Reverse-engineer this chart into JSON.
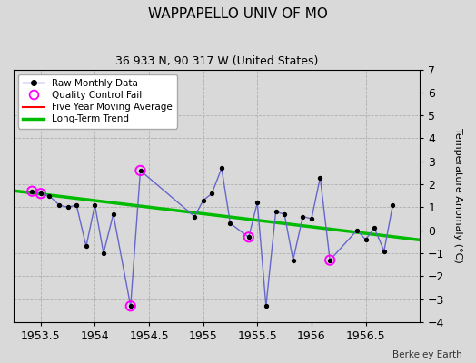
{
  "title": "WAPPAPELLO UNIV OF MO",
  "subtitle": "36.933 N, 90.317 W (United States)",
  "credit": "Berkeley Earth",
  "ylabel": "Temperature Anomaly (°C)",
  "xlim": [
    1953.25,
    1957.0
  ],
  "ylim": [
    -4,
    7
  ],
  "yticks": [
    -4,
    -3,
    -2,
    -1,
    0,
    1,
    2,
    3,
    4,
    5,
    6,
    7
  ],
  "xticks": [
    1953.5,
    1954.0,
    1954.5,
    1955.0,
    1955.5,
    1956.0,
    1956.5
  ],
  "xtick_labels": [
    "1953.5",
    "1954",
    "1954.5",
    "1955",
    "1955.5",
    "1956",
    "1956.5"
  ],
  "background_color": "#d9d9d9",
  "plot_bg_color": "#d9d9d9",
  "raw_x": [
    1953.42,
    1953.5,
    1953.58,
    1953.67,
    1953.75,
    1953.83,
    1953.92,
    1954.0,
    1954.08,
    1954.17,
    1954.33,
    1954.42,
    1954.92,
    1955.0,
    1955.08,
    1955.17,
    1955.25,
    1955.42,
    1955.5,
    1955.58,
    1955.67,
    1955.75,
    1955.83,
    1955.92,
    1956.0,
    1956.08,
    1956.17,
    1956.42,
    1956.5,
    1956.58,
    1956.67,
    1956.75
  ],
  "raw_y": [
    1.7,
    1.6,
    1.5,
    1.1,
    1.0,
    1.1,
    -0.7,
    1.1,
    -1.0,
    0.7,
    -3.3,
    2.6,
    0.6,
    1.3,
    1.6,
    2.7,
    0.3,
    -0.3,
    1.2,
    -3.3,
    0.8,
    0.7,
    -1.3,
    0.6,
    0.5,
    2.3,
    -1.3,
    0.0,
    -0.4,
    0.1,
    -0.9,
    1.1
  ],
  "qc_fail_x": [
    1953.42,
    1953.5,
    1954.33,
    1954.42,
    1955.42,
    1956.17
  ],
  "qc_fail_y": [
    1.7,
    1.6,
    -3.3,
    2.6,
    -0.3,
    -1.3
  ],
  "trend_x": [
    1953.25,
    1957.0
  ],
  "trend_y": [
    1.72,
    -0.42
  ],
  "raw_line_color": "#6666cc",
  "raw_marker_color": "#000000",
  "qc_color": "#ff00ff",
  "trend_color": "#00bb00",
  "five_year_color": "#ff0000",
  "legend_bg": "#ffffff",
  "title_fontsize": 11,
  "subtitle_fontsize": 9,
  "tick_fontsize": 9,
  "ylabel_fontsize": 8
}
